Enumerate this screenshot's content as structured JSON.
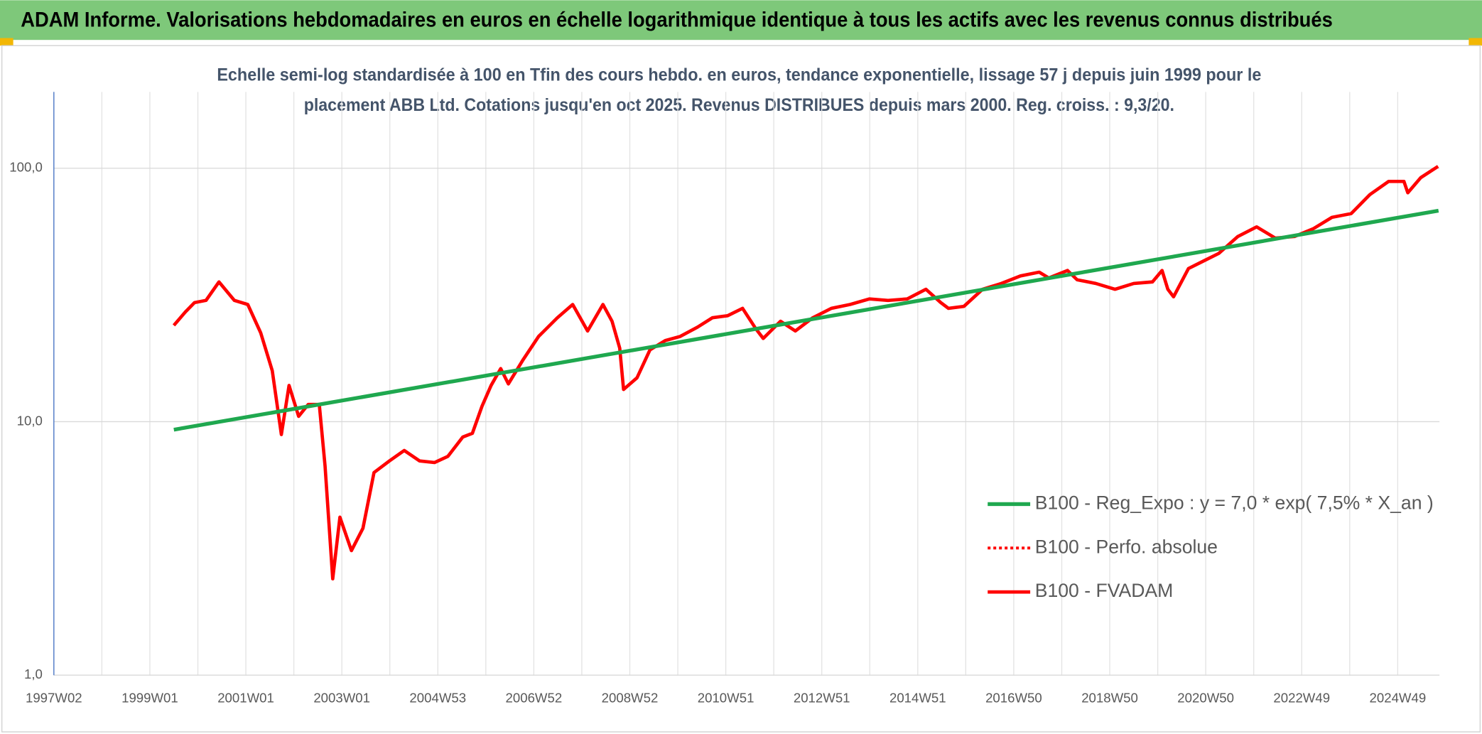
{
  "page_title": "ADAM Informe. Valorisations hebdomadaires en euros en échelle logarithmique identique à tous les actifs avec les revenus connus distribués",
  "chart_data": {
    "type": "line",
    "subtitle": [
      "Echelle semi-log standardisée à 100 en Tfin des cours hebdo. en euros, tendance exponentielle, lissage 57 j depuis juin 1999 pour le",
      "placement ABB Ltd. Cotations jusqu'en oct 2025. Revenus DISTRIBUES depuis mars 2000. Reg. croiss. : 9,3/20."
    ],
    "log_y": true,
    "grid": true,
    "legend": "right",
    "xlim": [
      1997.0,
      2025.87
    ],
    "xticks": [
      {
        "value": 1997,
        "label": "1997W02"
      },
      {
        "value": 1999,
        "label": "1999W01"
      },
      {
        "value": 2001,
        "label": "2001W01"
      },
      {
        "value": 2003,
        "label": "2003W01"
      },
      {
        "value": 2005,
        "label": "2004W53"
      },
      {
        "value": 2007,
        "label": "2006W52"
      },
      {
        "value": 2009,
        "label": "2008W52"
      },
      {
        "value": 2011,
        "label": "2010W51"
      },
      {
        "value": 2013,
        "label": "2012W51"
      },
      {
        "value": 2015,
        "label": "2014W51"
      },
      {
        "value": 2017,
        "label": "2016W50"
      },
      {
        "value": 2019,
        "label": "2018W50"
      },
      {
        "value": 2021,
        "label": "2020W50"
      },
      {
        "value": 2023,
        "label": "2022W49"
      },
      {
        "value": 2025,
        "label": "2024W49"
      }
    ],
    "xminorticks": [
      1998,
      2000,
      2002,
      2004,
      2006,
      2008,
      2010,
      2012,
      2014,
      2016,
      2018,
      2020,
      2022,
      2024
    ],
    "ylim": [
      1,
      200
    ],
    "yticks": [
      {
        "value": 1,
        "label": "1,0"
      },
      {
        "value": 10,
        "label": "10,0"
      },
      {
        "value": 100,
        "label": "100,0"
      }
    ],
    "series": [
      {
        "name": "B100 - Reg_Expo : y = 7,0 * exp( 7,5% *  X_an )",
        "color": "#1fa84f",
        "style": "solid",
        "width": 4,
        "x": [
          1999.5,
          2025.85
        ],
        "values": [
          9.3,
          68
        ]
      },
      {
        "name": "B100 - Perfo. absolue",
        "color": "#ff0000",
        "style": "dotted",
        "width": 3,
        "x": [
          1999.5,
          1999.74,
          1999.93,
          2000.17,
          2000.44,
          2000.76,
          2001.04,
          2001.31,
          2001.55,
          2001.74,
          2001.9,
          2002.1,
          2002.3,
          2002.53,
          2002.65,
          2002.81,
          2002.96,
          2003.2,
          2003.44,
          2003.67,
          2003.99,
          2004.3,
          2004.62,
          2004.93,
          2005.21,
          2005.52,
          2005.72,
          2005.92,
          2006.11,
          2006.31,
          2006.47,
          2006.78,
          2007.1,
          2007.49,
          2007.81,
          2008.12,
          2008.44,
          2008.63,
          2008.79,
          2008.87,
          2009.15,
          2009.42,
          2009.74,
          2010.05,
          2010.41,
          2010.72,
          2011.04,
          2011.35,
          2011.63,
          2011.78,
          2012.14,
          2012.45,
          2012.81,
          2013.2,
          2013.59,
          2013.99,
          2014.38,
          2014.78,
          2015.17,
          2015.48,
          2015.64,
          2015.96,
          2016.35,
          2016.74,
          2017.14,
          2017.53,
          2017.73,
          2018.12,
          2018.32,
          2018.71,
          2019.11,
          2019.5,
          2019.89,
          2020.09,
          2020.21,
          2020.33,
          2020.64,
          2020.96,
          2021.27,
          2021.67,
          2022.06,
          2022.45,
          2022.85,
          2023.24,
          2023.63,
          2024.03,
          2024.42,
          2024.81,
          2025.13,
          2025.21,
          2025.48,
          2025.84
        ],
        "values": [
          24.0,
          27.1,
          29.5,
          30.1,
          35.6,
          30.1,
          29.0,
          22.4,
          15.9,
          8.9,
          13.9,
          10.5,
          11.7,
          11.7,
          6.7,
          2.4,
          4.2,
          3.1,
          3.8,
          6.3,
          7.0,
          7.7,
          7.0,
          6.9,
          7.3,
          8.7,
          9.0,
          11.5,
          13.9,
          16.2,
          14.1,
          17.6,
          21.7,
          25.7,
          29.0,
          22.8,
          29.0,
          24.9,
          19.5,
          13.4,
          14.9,
          19.2,
          20.9,
          21.7,
          23.6,
          25.7,
          26.2,
          28.0,
          23.2,
          21.3,
          24.9,
          22.8,
          25.7,
          28.0,
          29.0,
          30.5,
          30.1,
          30.5,
          33.3,
          29.5,
          28.0,
          28.5,
          33.3,
          35.1,
          37.6,
          38.9,
          36.9,
          39.5,
          36.3,
          35.1,
          33.3,
          35.1,
          35.6,
          39.5,
          33.3,
          31.1,
          40.2,
          43.1,
          46.1,
          53.8,
          58.7,
          53.0,
          53.8,
          57.7,
          64.0,
          66.2,
          78.7,
          88.7,
          88.7,
          80.0,
          91.8,
          101.7
        ]
      },
      {
        "name": "B100 - FVADAM",
        "color": "#ff0000",
        "style": "solid",
        "width": 3.5,
        "x": [
          1999.5,
          1999.74,
          1999.93,
          2000.17,
          2000.44,
          2000.76,
          2001.04,
          2001.31,
          2001.55,
          2001.74,
          2001.9,
          2002.1,
          2002.3,
          2002.53,
          2002.65,
          2002.81,
          2002.96,
          2003.2,
          2003.44,
          2003.67,
          2003.99,
          2004.3,
          2004.62,
          2004.93,
          2005.21,
          2005.52,
          2005.72,
          2005.92,
          2006.11,
          2006.31,
          2006.47,
          2006.78,
          2007.1,
          2007.49,
          2007.81,
          2008.12,
          2008.44,
          2008.63,
          2008.79,
          2008.87,
          2009.15,
          2009.42,
          2009.74,
          2010.05,
          2010.41,
          2010.72,
          2011.04,
          2011.35,
          2011.63,
          2011.78,
          2012.14,
          2012.45,
          2012.81,
          2013.2,
          2013.59,
          2013.99,
          2014.38,
          2014.78,
          2015.17,
          2015.48,
          2015.64,
          2015.96,
          2016.35,
          2016.74,
          2017.14,
          2017.53,
          2017.73,
          2018.12,
          2018.32,
          2018.71,
          2019.11,
          2019.5,
          2019.89,
          2020.09,
          2020.21,
          2020.33,
          2020.64,
          2020.96,
          2021.27,
          2021.67,
          2022.06,
          2022.45,
          2022.85,
          2023.24,
          2023.63,
          2024.03,
          2024.42,
          2024.81,
          2025.13,
          2025.21,
          2025.48,
          2025.84
        ],
        "values": [
          24.0,
          27.1,
          29.5,
          30.1,
          35.6,
          30.1,
          29.0,
          22.4,
          15.9,
          8.9,
          13.9,
          10.5,
          11.7,
          11.7,
          6.7,
          2.4,
          4.2,
          3.1,
          3.8,
          6.3,
          7.0,
          7.7,
          7.0,
          6.9,
          7.3,
          8.7,
          9.0,
          11.5,
          13.9,
          16.2,
          14.1,
          17.6,
          21.7,
          25.7,
          29.0,
          22.8,
          29.0,
          24.9,
          19.5,
          13.4,
          14.9,
          19.2,
          20.9,
          21.7,
          23.6,
          25.7,
          26.2,
          28.0,
          23.2,
          21.3,
          24.9,
          22.8,
          25.7,
          28.0,
          29.0,
          30.5,
          30.1,
          30.5,
          33.3,
          29.5,
          28.0,
          28.5,
          33.3,
          35.1,
          37.6,
          38.9,
          36.9,
          39.5,
          36.3,
          35.1,
          33.3,
          35.1,
          35.6,
          39.5,
          33.3,
          31.1,
          40.2,
          43.1,
          46.1,
          53.8,
          58.7,
          53.0,
          53.8,
          57.7,
          64.0,
          66.2,
          78.7,
          88.7,
          88.7,
          80.0,
          91.8,
          101.7
        ]
      }
    ]
  }
}
